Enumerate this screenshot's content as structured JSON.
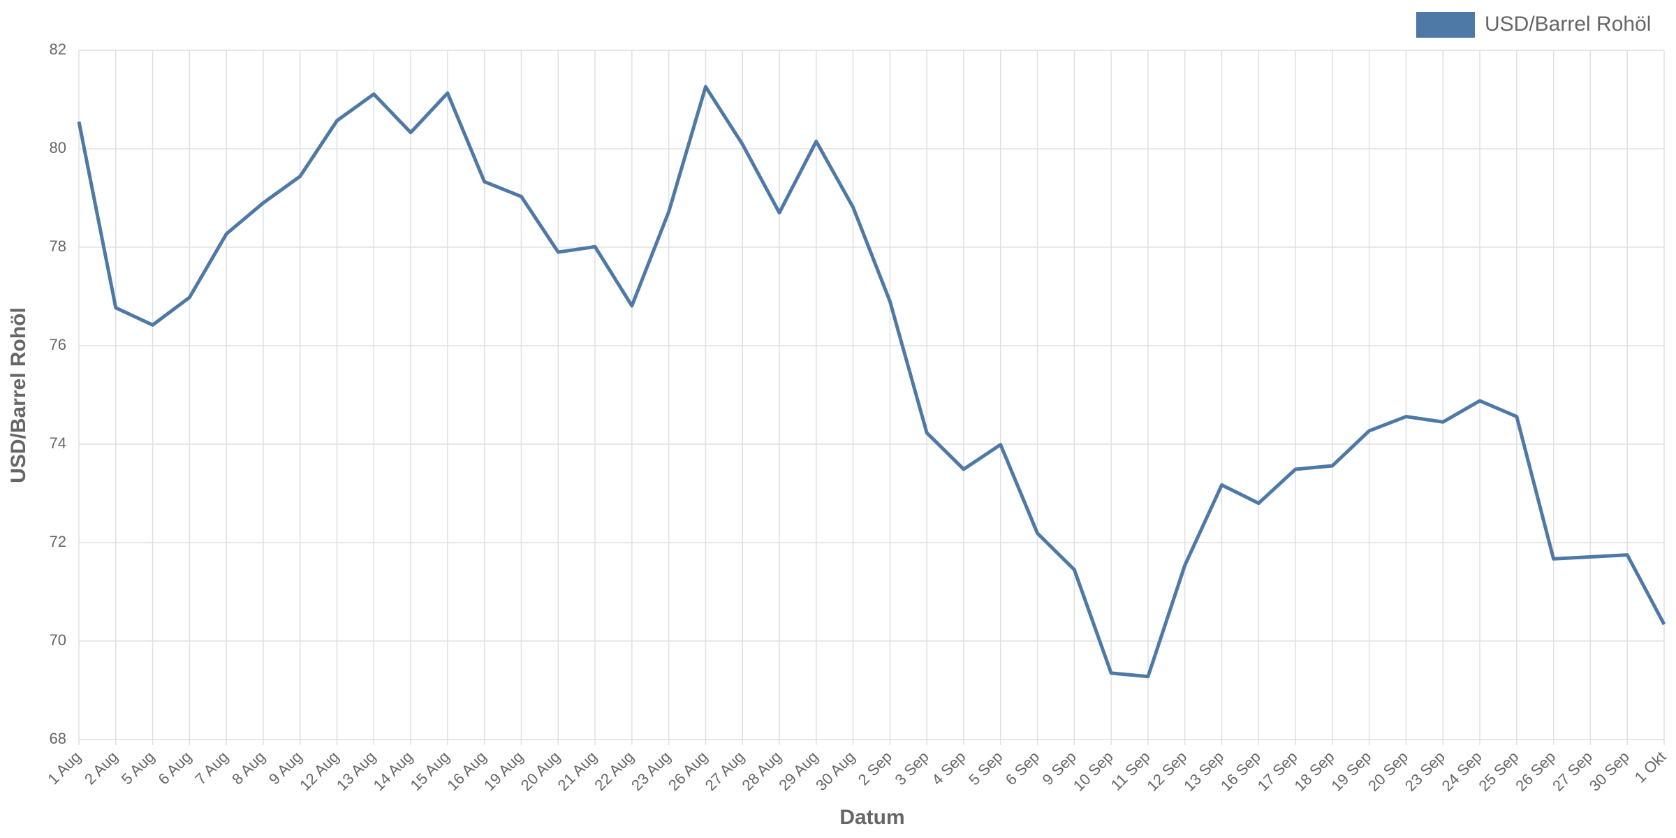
{
  "chart_data": {
    "type": "line",
    "y_label": "USD/Barrel Rohöl",
    "x_label": "Datum",
    "categories": [
      "1 Aug",
      "2 Aug",
      "5 Aug",
      "6 Aug",
      "7 Aug",
      "8 Aug",
      "9 Aug",
      "12 Aug",
      "13 Aug",
      "14 Aug",
      "15 Aug",
      "16 Aug",
      "19 Aug",
      "20 Aug",
      "21 Aug",
      "22 Aug",
      "23 Aug",
      "26 Aug",
      "27 Aug",
      "28 Aug",
      "29 Aug",
      "30 Aug",
      "2 Sep",
      "3 Sep",
      "4 Sep",
      "5 Sep",
      "6 Sep",
      "9 Sep",
      "10 Sep",
      "11 Sep",
      "12 Sep",
      "13 Sep",
      "16 Sep",
      "17 Sep",
      "18 Sep",
      "19 Sep",
      "20 Sep",
      "23 Sep",
      "24 Sep",
      "25 Sep",
      "26 Sep",
      "27 Sep",
      "30 Sep",
      "1 Okt"
    ],
    "series": [
      {
        "name": "USD/Barrel Rohöl",
        "color": "#4e79a7",
        "values": [
          80.55,
          76.77,
          76.42,
          76.98,
          78.27,
          78.9,
          79.44,
          80.57,
          81.11,
          80.33,
          81.13,
          79.33,
          79.03,
          77.9,
          78.01,
          76.81,
          78.72,
          81.26,
          80.09,
          78.7,
          80.15,
          78.81,
          76.9,
          74.23,
          73.49,
          73.99,
          72.19,
          71.45,
          69.35,
          69.28,
          71.54,
          73.17,
          72.8,
          73.49,
          73.56,
          74.27,
          74.56,
          74.45,
          74.88,
          74.56,
          71.67,
          71.71,
          71.75,
          70.34
        ]
      }
    ],
    "ylim": [
      68,
      82
    ],
    "yticks": [
      68,
      70,
      72,
      74,
      76,
      78,
      80,
      82
    ],
    "grid": true,
    "legend": "top-right"
  }
}
